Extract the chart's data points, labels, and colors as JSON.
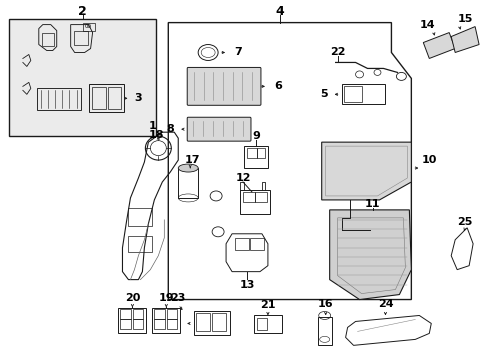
{
  "bg_color": "#ffffff",
  "fig_width": 4.89,
  "fig_height": 3.6,
  "dpi": 100,
  "line_color": "#1a1a1a",
  "light_fill": "#e8e8e8",
  "medium_fill": "#d0d0d0"
}
